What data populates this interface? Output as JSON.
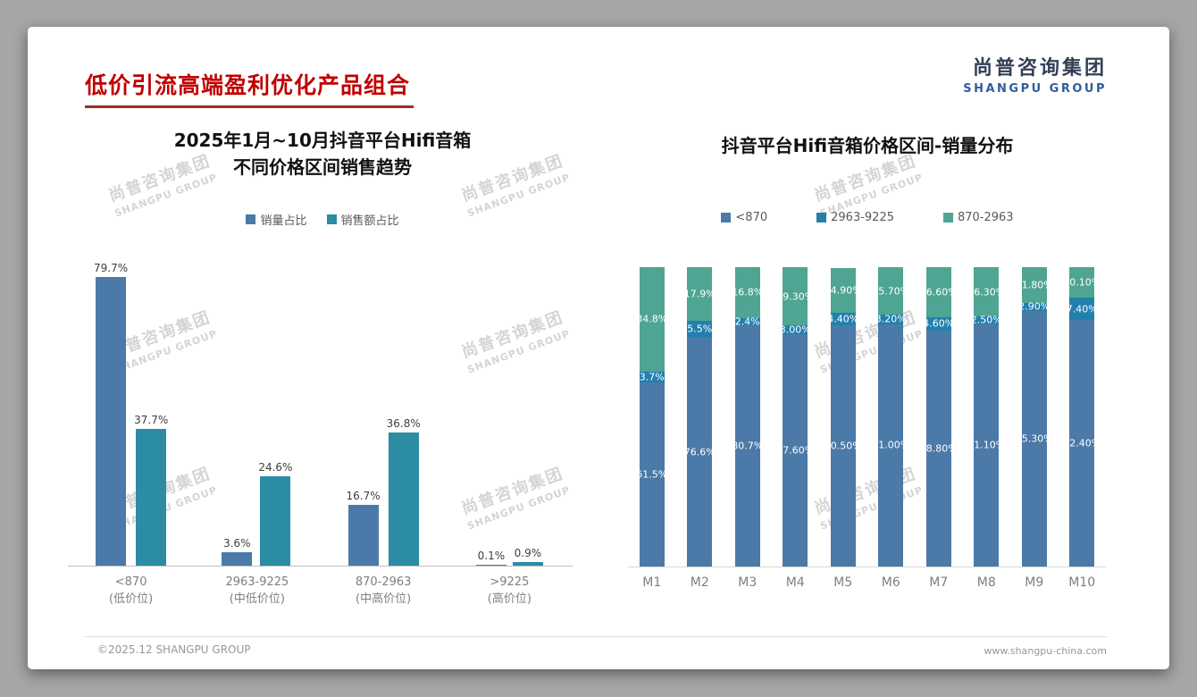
{
  "page": {
    "title": "低价引流高端盈利优化产品组合",
    "logo": {
      "cn": "尚普咨询集团",
      "en": "SHANGPU GROUP"
    },
    "watermark": {
      "line1": "尚普咨询集团",
      "line2": "SHANGPU GROUP"
    },
    "footer": {
      "left": "©2025.12 SHANGPU GROUP",
      "right": "www.shangpu-china.com"
    }
  },
  "colors": {
    "title_red": "#C00000",
    "bar_blue": "#4B79A8",
    "bar_teal": "#2B8CA4",
    "bar_mid_blue": "#2380AD",
    "bar_green": "#4FA593",
    "watermark_gray": "#D4D4D4"
  },
  "chart_data": [
    {
      "type": "bar",
      "title_lines": [
        "2025年1月~10月抖音平台Hifi音箱",
        "不同价格区间销售趋势"
      ],
      "legend_position": "top",
      "grid": false,
      "ylim": [
        0,
        84
      ],
      "categories": [
        {
          "line1": "<870",
          "line2": "(低价位)"
        },
        {
          "line1": "2963-9225",
          "line2": "(中低价位)"
        },
        {
          "line1": "870-2963",
          "line2": "(中高价位)"
        },
        {
          "line1": ">9225",
          "line2": "(高价位)"
        }
      ],
      "series": [
        {
          "name": "销量占比",
          "color": "#4B79A8",
          "values": [
            79.7,
            3.6,
            16.7,
            0.1
          ],
          "labels": [
            "79.7%",
            "3.6%",
            "16.7%",
            "0.1%"
          ]
        },
        {
          "name": "销售额占比",
          "color": "#2B8CA4",
          "values": [
            37.7,
            24.6,
            36.8,
            0.9
          ],
          "labels": [
            "37.7%",
            "24.6%",
            "36.8%",
            "0.9%"
          ]
        }
      ]
    },
    {
      "type": "stacked-bar",
      "title": "抖音平台Hifi音箱价格区间-销量分布",
      "legend_position": "top",
      "grid": false,
      "ylim": [
        0,
        100
      ],
      "categories": [
        "M1",
        "M2",
        "M3",
        "M4",
        "M5",
        "M6",
        "M7",
        "M8",
        "M9",
        "M10"
      ],
      "series": [
        {
          "name": "<870",
          "color": "#4B79A8",
          "values": [
            61.5,
            76.6,
            80.7,
            77.6,
            80.5,
            81.0,
            78.8,
            81.1,
            85.3,
            82.4
          ],
          "labels": [
            "61.5%",
            "76.6%",
            "80.7%",
            "77.60%",
            "80.50%",
            "81.00%",
            "78.80%",
            "81.10%",
            "85.30%",
            "82.40%"
          ]
        },
        {
          "name": "2963-9225",
          "color": "#2380AD",
          "values": [
            3.7,
            5.5,
            2.4,
            3.0,
            4.4,
            3.2,
            4.6,
            2.5,
            2.9,
            7.4
          ],
          "labels": [
            "3.7%",
            "5.5%",
            "2.4%",
            "3.00%",
            "4.40%",
            "3.20%",
            "4.60%",
            "2.50%",
            "2.90%",
            "7.40%"
          ]
        },
        {
          "name": "870-2963",
          "color": "#4FA593",
          "values": [
            34.8,
            17.9,
            16.8,
            19.3,
            14.9,
            15.7,
            16.6,
            16.3,
            11.8,
            10.1
          ],
          "labels": [
            "34.8%",
            "17.9%",
            "16.8%",
            "19.30%",
            "14.90%",
            "15.70%",
            "16.60%",
            "16.30%",
            "11.80%",
            "10.10%"
          ]
        }
      ]
    }
  ]
}
